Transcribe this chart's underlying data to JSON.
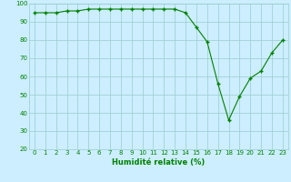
{
  "x": [
    0,
    1,
    2,
    3,
    4,
    5,
    6,
    7,
    8,
    9,
    10,
    11,
    12,
    13,
    14,
    15,
    16,
    17,
    18,
    19,
    20,
    21,
    22,
    23
  ],
  "y": [
    95,
    95,
    95,
    96,
    96,
    97,
    97,
    97,
    97,
    97,
    97,
    97,
    97,
    97,
    95,
    87,
    79,
    56,
    36,
    49,
    59,
    63,
    73,
    80
  ],
  "x_labels": [
    "0",
    "1",
    "2",
    "3",
    "4",
    "5",
    "6",
    "7",
    "8",
    "9",
    "10",
    "11",
    "12",
    "13",
    "14",
    "15",
    "16",
    "17",
    "18",
    "19",
    "20",
    "21",
    "22",
    "23"
  ],
  "xlabel": "Humidité relative (%)",
  "ylim": [
    20,
    100
  ],
  "yticks": [
    20,
    30,
    40,
    50,
    60,
    70,
    80,
    90,
    100
  ],
  "line_color": "#008000",
  "marker": "+",
  "marker_size": 3.5,
  "marker_ew": 1.0,
  "linewidth": 0.8,
  "bg_color": "#cceeff",
  "grid_color": "#99cccc",
  "xlabel_fontsize": 6.0,
  "tick_fontsize": 5.0
}
